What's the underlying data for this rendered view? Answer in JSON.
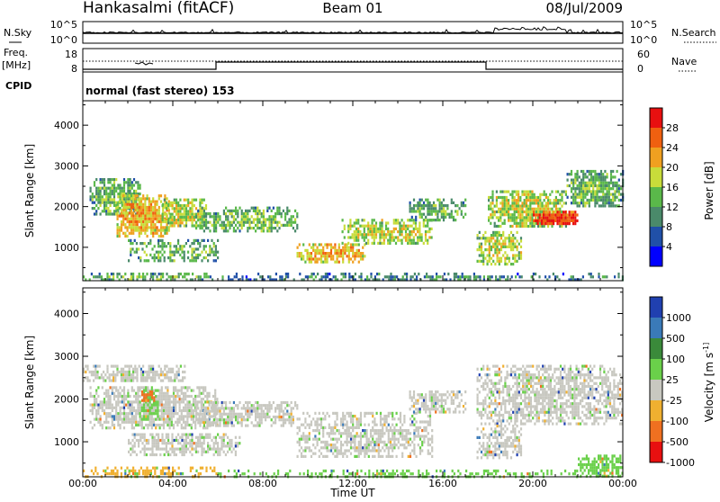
{
  "header": {
    "station": "Hankasalmi (fitACF)",
    "beam": "Beam 01",
    "date": "08/Jul/2009"
  },
  "noise_panel": {
    "left_label": "N.Sky",
    "left_ticks": [
      "10^5",
      "10^0"
    ],
    "right_label": "N.Search",
    "right_ticks": [
      "10^5",
      "10^0"
    ]
  },
  "freq_panel": {
    "left_label_line1": "Freq.",
    "left_label_line2": "[MHz]",
    "left_ticks": [
      "18",
      "8"
    ],
    "right_label": "Nave",
    "right_ticks": [
      "60",
      "0"
    ]
  },
  "cpid": {
    "label": "CPID",
    "mode_text": "normal (fast stereo) 153"
  },
  "x_axis": {
    "label": "Time UT",
    "ticks": [
      "00:00",
      "04:00",
      "08:00",
      "12:00",
      "16:00",
      "20:00",
      "00:00"
    ]
  },
  "colors": {
    "power": [
      "#0000ff",
      "#2050a8",
      "#4a8a6a",
      "#5ab84a",
      "#c8dc3a",
      "#f0a020",
      "#f06010",
      "#e81010"
    ],
    "velocity": [
      "#2040b0",
      "#3a7ab8",
      "#3a8a3a",
      "#6ad04a",
      "#c8c8c0",
      "#f0b030",
      "#f07020",
      "#e81010"
    ]
  },
  "chart_data": [
    {
      "type": "heatmap",
      "title": "",
      "ylabel": "Slant Range [km]",
      "xlabel": "",
      "ylim": [
        180,
        4600
      ],
      "y_ticks": [
        1000,
        2000,
        3000,
        4000
      ],
      "colorbar_label": "Power [dB]",
      "colorbar_ticks": [
        4,
        8,
        12,
        16,
        20,
        24,
        28
      ],
      "colorbar_range": [
        0,
        32
      ],
      "x_hours": [
        0,
        24
      ],
      "echo_regions": [
        {
          "t0": 0.0,
          "t1": 6.0,
          "r0": 200,
          "r1": 380,
          "level": 2,
          "density": 0.45
        },
        {
          "t0": 0.3,
          "t1": 2.5,
          "r0": 1800,
          "r1": 2700,
          "level": 2,
          "density": 0.6
        },
        {
          "t0": 1.5,
          "t1": 3.8,
          "r0": 1300,
          "r1": 2300,
          "level": 4,
          "density": 0.65
        },
        {
          "t0": 3.5,
          "t1": 5.5,
          "r0": 1500,
          "r1": 2200,
          "level": 3,
          "density": 0.6
        },
        {
          "t0": 5.0,
          "t1": 9.5,
          "r0": 1400,
          "r1": 2000,
          "level": 2,
          "density": 0.5
        },
        {
          "t0": 2.0,
          "t1": 6.0,
          "r0": 700,
          "r1": 1200,
          "level": 2,
          "density": 0.4
        },
        {
          "t0": 9.5,
          "t1": 12.5,
          "r0": 650,
          "r1": 1100,
          "level": 4,
          "density": 0.6
        },
        {
          "t0": 11.5,
          "t1": 15.5,
          "r0": 1100,
          "r1": 1700,
          "level": 3,
          "density": 0.5
        },
        {
          "t0": 14.5,
          "t1": 17.0,
          "r0": 1700,
          "r1": 2200,
          "level": 2,
          "density": 0.5
        },
        {
          "t0": 17.5,
          "t1": 19.5,
          "r0": 600,
          "r1": 1400,
          "level": 3,
          "density": 0.5
        },
        {
          "t0": 18.0,
          "t1": 21.5,
          "r0": 1500,
          "r1": 2400,
          "level": 3,
          "density": 0.6
        },
        {
          "t0": 20.0,
          "t1": 22.0,
          "r0": 1550,
          "r1": 1900,
          "level": 6,
          "density": 0.75
        },
        {
          "t0": 21.5,
          "t1": 24.0,
          "r0": 2000,
          "r1": 2900,
          "level": 2,
          "density": 0.6
        },
        {
          "t0": 6.0,
          "t1": 24.0,
          "r0": 180,
          "r1": 380,
          "level": 1,
          "density": 0.35
        }
      ]
    },
    {
      "type": "heatmap",
      "title": "",
      "ylabel": "Slant Range [km]",
      "xlabel": "Time UT",
      "ylim": [
        180,
        4600
      ],
      "y_ticks": [
        1000,
        2000,
        3000,
        4000
      ],
      "colorbar_label": "Velocity [m s^-1]",
      "colorbar_ticks": [
        1000,
        500,
        100,
        25,
        -25,
        -100,
        -500,
        -1000
      ],
      "echo_regions": [
        {
          "t0": 0.0,
          "t1": 4.5,
          "r0": 2400,
          "r1": 2800,
          "level": 4,
          "density": 0.55
        },
        {
          "t0": 0.3,
          "t1": 6.0,
          "r0": 1300,
          "r1": 2300,
          "level": 4,
          "density": 0.55
        },
        {
          "t0": 2.5,
          "t1": 3.3,
          "r0": 1500,
          "r1": 2300,
          "level": 3,
          "density": 0.4
        },
        {
          "t0": 2.6,
          "t1": 3.2,
          "r0": 1950,
          "r1": 2200,
          "level": 6,
          "density": 0.5
        },
        {
          "t0": 5.0,
          "t1": 9.5,
          "r0": 1400,
          "r1": 1950,
          "level": 4,
          "density": 0.55
        },
        {
          "t0": 2.0,
          "t1": 7.0,
          "r0": 700,
          "r1": 1200,
          "level": 4,
          "density": 0.5
        },
        {
          "t0": 9.5,
          "t1": 15.5,
          "r0": 650,
          "r1": 1700,
          "level": 4,
          "density": 0.45
        },
        {
          "t0": 14.5,
          "t1": 17.0,
          "r0": 1700,
          "r1": 2200,
          "level": 4,
          "density": 0.5
        },
        {
          "t0": 17.5,
          "t1": 24.0,
          "r0": 1400,
          "r1": 2800,
          "level": 4,
          "density": 0.5
        },
        {
          "t0": 17.5,
          "t1": 19.5,
          "r0": 600,
          "r1": 1400,
          "level": 4,
          "density": 0.45
        },
        {
          "t0": 0.0,
          "t1": 6.0,
          "r0": 200,
          "r1": 420,
          "level": 5,
          "density": 0.4
        },
        {
          "t0": 6.0,
          "t1": 22.0,
          "r0": 180,
          "r1": 350,
          "level": 3,
          "density": 0.3
        },
        {
          "t0": 22.0,
          "t1": 24.0,
          "r0": 180,
          "r1": 700,
          "level": 3,
          "density": 0.5
        }
      ]
    }
  ]
}
